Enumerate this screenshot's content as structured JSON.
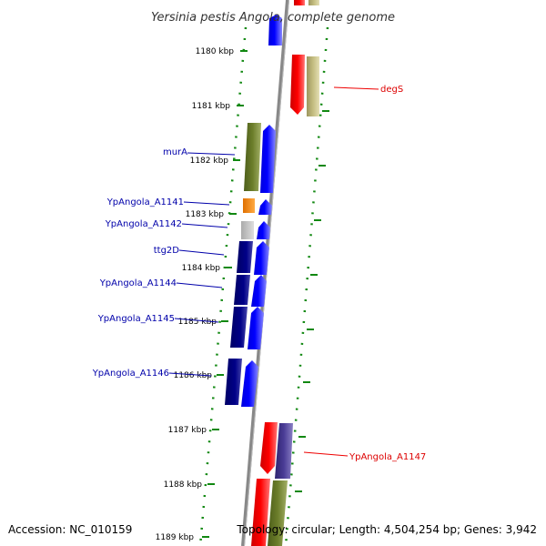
{
  "title": "Yersinia pestis Angola, complete genome",
  "ticks": [
    "1180 kbp",
    "1181 kbp",
    "1182 kbp",
    "1183 kbp",
    "1184 kbp",
    "1185 kbp",
    "1186 kbp",
    "1187 kbp",
    "1188 kbp",
    "1189 kbp"
  ],
  "genes": [
    {
      "label": "degS",
      "color": "#dd0000"
    },
    {
      "label": "murA",
      "color": "#0000aa"
    },
    {
      "label": "YpAngola_A1141",
      "color": "#0000aa"
    },
    {
      "label": "YpAngola_A1142",
      "color": "#0000aa"
    },
    {
      "label": "ttg2D",
      "color": "#0000aa"
    },
    {
      "label": "YpAngola_A1144",
      "color": "#0000aa"
    },
    {
      "label": "YpAngola_A1145",
      "color": "#0000aa"
    },
    {
      "label": "YpAngola_A1146",
      "color": "#0000aa"
    },
    {
      "label": "YpAngola_A1147",
      "color": "#dd0000"
    }
  ],
  "footer": {
    "accession": "Accession: NC_010159",
    "topology": "Topology: circular; Length: 4,504,254 bp; Genes: 3,942"
  },
  "colors": {
    "backbone": "#888888",
    "gc_dots": "#118811",
    "forward_blue": "#0000ee",
    "reverse_navy": "#000077",
    "red": "#ee0000",
    "olive": "#667722",
    "khaki": "#bbb477",
    "orange": "#ff8800",
    "gray": "#bbbbbb",
    "slate": "#443388"
  }
}
